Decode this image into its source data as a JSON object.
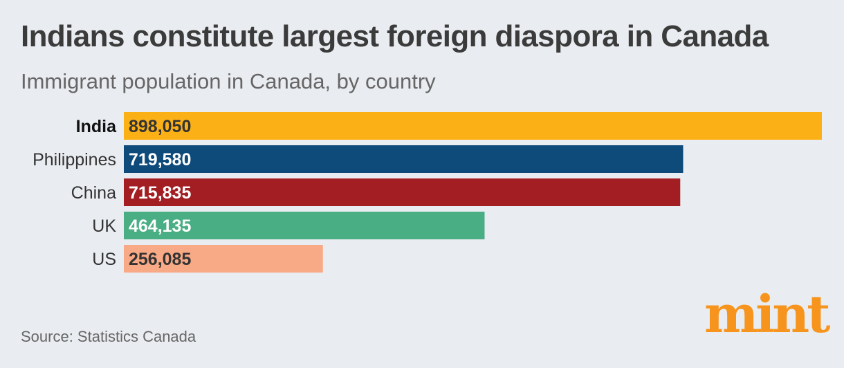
{
  "title": "Indians constitute largest foreign diaspora in Canada",
  "subtitle": "Immigrant population in Canada, by country",
  "source": "Source: Statistics Canada",
  "logo_text": "mint",
  "colors": {
    "background": "#e9ecf0",
    "logo": "#f7941d"
  },
  "chart_data": {
    "type": "bar",
    "orientation": "horizontal",
    "title": "Indians constitute largest foreign diaspora in Canada",
    "subtitle": "Immigrant population in Canada, by country",
    "categories": [
      "India",
      "Philippines",
      "China",
      "UK",
      "US"
    ],
    "values": [
      898050,
      719580,
      715835,
      464135,
      256085
    ],
    "value_labels": [
      "898,050",
      "719,580",
      "715,835",
      "464,135",
      "256,085"
    ],
    "highlight": "India",
    "bar_colors": [
      "#fbb116",
      "#0e4a7a",
      "#a31e22",
      "#4aae84",
      "#f8a985"
    ],
    "label_colors": [
      "#333333",
      "#ffffff",
      "#ffffff",
      "#ffffff",
      "#333333"
    ],
    "xlim": [
      0,
      898050
    ],
    "grid": false,
    "legend": "none"
  }
}
